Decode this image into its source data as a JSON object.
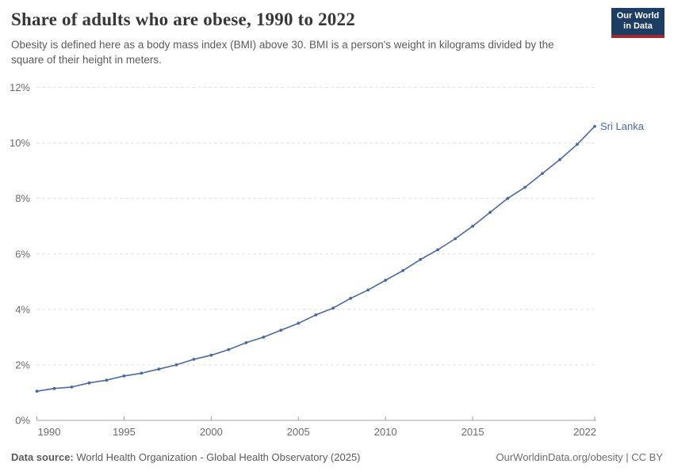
{
  "header": {
    "title": "Share of adults who are obese, 1990 to 2022",
    "subtitle": "Obesity is defined here as a body mass index (BMI) above 30. BMI is a person's weight in kilograms divided by the square of their height in meters."
  },
  "logo": {
    "line1": "Our World",
    "line2": "in Data"
  },
  "chart_data": {
    "type": "line",
    "title": "Share of adults who are obese, 1990 to 2022",
    "xlabel": "",
    "ylabel": "",
    "xlim": [
      1990,
      2022
    ],
    "ylim": [
      0,
      12
    ],
    "grid": "horizontal-dashed",
    "legend_position": "end-of-line-label",
    "xticks": [
      1990,
      1995,
      2000,
      2005,
      2010,
      2015,
      2022
    ],
    "yticks": [
      0,
      2,
      4,
      6,
      8,
      10,
      12
    ],
    "ytick_suffix": "%",
    "series": [
      {
        "name": "Sri Lanka",
        "x": [
          1990,
          1991,
          1992,
          1993,
          1994,
          1995,
          1996,
          1997,
          1998,
          1999,
          2000,
          2001,
          2002,
          2003,
          2004,
          2005,
          2006,
          2007,
          2008,
          2009,
          2010,
          2011,
          2012,
          2013,
          2014,
          2015,
          2016,
          2017,
          2018,
          2019,
          2020,
          2021,
          2022
        ],
        "values": [
          1.05,
          1.15,
          1.2,
          1.35,
          1.45,
          1.6,
          1.7,
          1.85,
          2.0,
          2.2,
          2.35,
          2.55,
          2.8,
          3.0,
          3.25,
          3.5,
          3.8,
          4.05,
          4.4,
          4.7,
          5.05,
          5.4,
          5.8,
          6.15,
          6.55,
          7.0,
          7.5,
          8.0,
          8.4,
          8.9,
          9.4,
          9.95,
          10.6
        ]
      }
    ],
    "colors": {
      "line": "#4c6a9c",
      "series_label": "#4c6a9c",
      "grid": "#d9d9d9",
      "axis": "#a0a0a0",
      "tick_text": "#6b6b6b"
    }
  },
  "footer": {
    "source_label": "Data source:",
    "source_text": " World Health Organization - Global Health Observatory (2025)",
    "credit": "OurWorldinData.org/obesity | CC BY"
  }
}
